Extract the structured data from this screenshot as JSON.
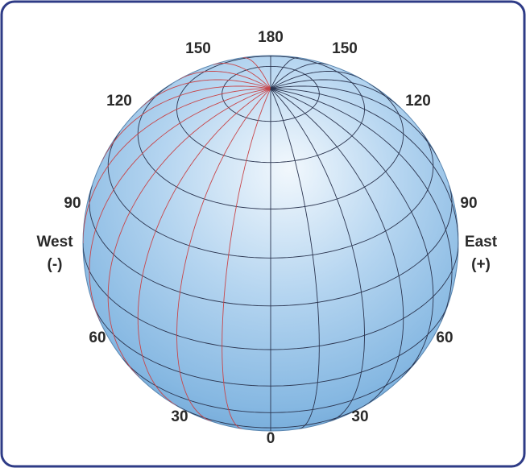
{
  "labels": {
    "top": "180",
    "upper_left": "150",
    "upper_right": "150",
    "mid_upper_left": "120",
    "mid_upper_right": "120",
    "left_90": "90",
    "right_90": "90",
    "west": "West",
    "west_sign": "(-)",
    "east": "East",
    "east_sign": "(+)",
    "left_60": "60",
    "right_60": "60",
    "left_30": "30",
    "right_30": "30",
    "bottom": "0"
  }
}
